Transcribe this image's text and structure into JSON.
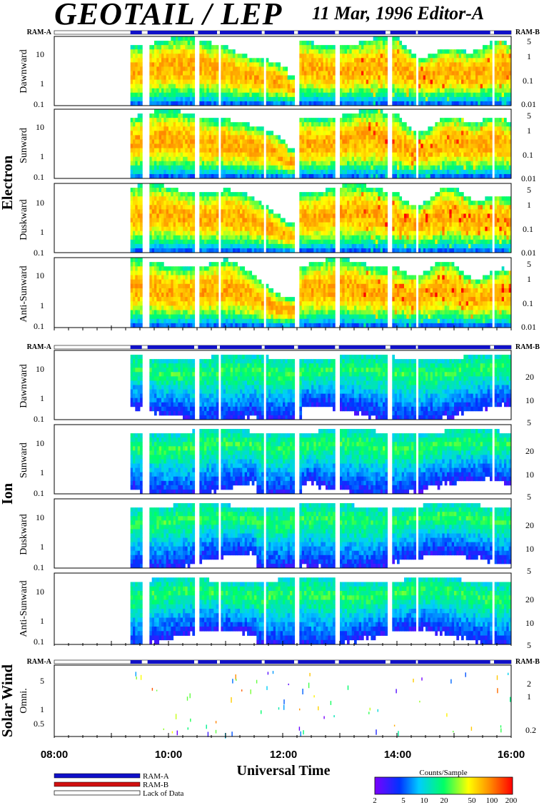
{
  "header": {
    "title": "GEOTAIL / LEP",
    "date_editor": "11 Mar, 1996   Editor-A"
  },
  "ram_labels": {
    "left": "RAM-A",
    "right": "RAM-B"
  },
  "groups": [
    {
      "name": "Electron",
      "panels": [
        "Dawnward",
        "Sunward",
        "Duskward",
        "Anti-Sunward"
      ]
    },
    {
      "name": "Ion",
      "panels": [
        "Dawnward",
        "Sunward",
        "Duskward",
        "Anti-Sunward"
      ]
    },
    {
      "name": "Solar Wind",
      "panels": [
        "Omni."
      ]
    }
  ],
  "chart_data": {
    "type": "heatmap",
    "xlabel": "Universal Time",
    "x_ticks": [
      "08:00",
      "10:00",
      "12:00",
      "14:00",
      "16:00"
    ],
    "x_range": [
      "08:00",
      "16:00"
    ],
    "y_ticks": {
      "electron_left": [
        "10",
        "1",
        "0.1"
      ],
      "electron_right": [
        "5",
        "1",
        "0.1",
        "0.01"
      ],
      "ion_left": [
        "10",
        "1",
        "0.1"
      ],
      "ion_right": [
        "20",
        "10",
        "5"
      ],
      "solarwind_left": [
        "5",
        "1",
        "0.5"
      ],
      "solarwind_right": [
        "2",
        "1",
        "0.2"
      ]
    },
    "data_start": "09:20",
    "data_gaps": [
      [
        "09:32",
        "09:38"
      ],
      [
        "10:27",
        "10:31"
      ],
      [
        "10:51",
        "10:54"
      ],
      [
        "11:38",
        "11:41"
      ],
      [
        "12:12",
        "12:16"
      ],
      [
        "12:55",
        "12:59"
      ],
      [
        "13:48",
        "13:53"
      ],
      [
        "14:20",
        "14:22"
      ],
      [
        "15:38",
        "15:42"
      ]
    ],
    "electron_energy_dropout": [
      "12:05",
      "12:15"
    ],
    "colorbar": {
      "title": "Counts/Sample",
      "ticks": [
        "2",
        "5",
        "10",
        "20",
        "50",
        "100",
        "200"
      ],
      "colors": [
        "#7a00ff",
        "#0033ff",
        "#00ccff",
        "#00ff66",
        "#ffff00",
        "#ff8800",
        "#ff0000"
      ]
    }
  },
  "legend": {
    "items": [
      {
        "label": "RAM-A",
        "color": "#1010c8"
      },
      {
        "label": "RAM-B",
        "color": "#d01010"
      },
      {
        "label": "Lack of Data",
        "color": "#ffffff"
      }
    ]
  }
}
